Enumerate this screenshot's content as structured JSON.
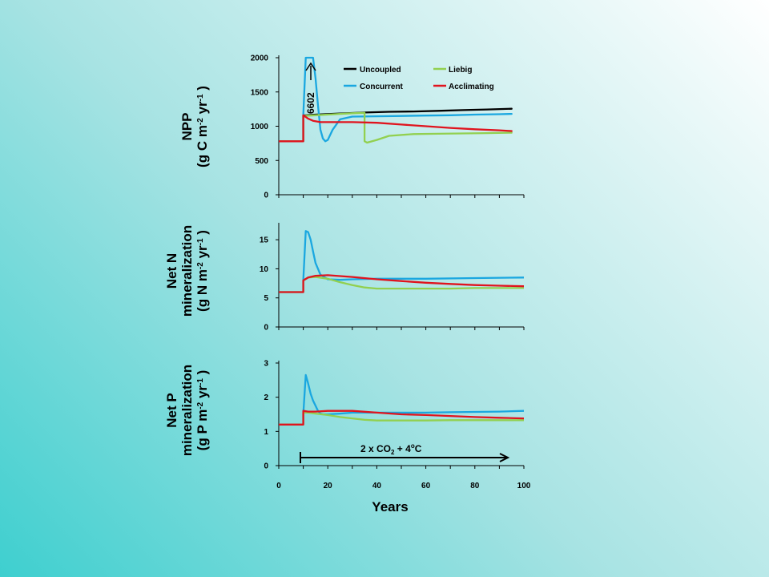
{
  "colors": {
    "Uncoupled": "#000000",
    "Concurrent": "#1aa7e0",
    "Liebig": "#92d050",
    "Acclimating": "#e0141e"
  },
  "xlabel": "Years",
  "legend": {
    "placement": "top-right",
    "entries": [
      "Uncoupled",
      "Liebig",
      "Concurrent",
      "Acclimating"
    ]
  },
  "annotations": {
    "peak_value": "6602",
    "treatment": "2 x CO2 + 4oC"
  },
  "chart_data": [
    {
      "type": "line",
      "ylabel_lines": [
        "NPP",
        "(g C m-2 yr-1 )"
      ],
      "ylim": [
        0,
        2000
      ],
      "yticks": [
        0,
        500,
        1000,
        1500,
        2000
      ],
      "xlim": [
        0,
        100
      ],
      "series": [
        {
          "name": "Uncoupled",
          "x": [
            0,
            10,
            10,
            15,
            25,
            35,
            45,
            55,
            65,
            75,
            85,
            95
          ],
          "values": [
            780,
            780,
            1155,
            1170,
            1185,
            1200,
            1210,
            1215,
            1225,
            1235,
            1245,
            1255
          ]
        },
        {
          "name": "Concurrent",
          "x": [
            0,
            10,
            10,
            11,
            12,
            13,
            14,
            15,
            16,
            17,
            18,
            19,
            20,
            22,
            25,
            30,
            40,
            50,
            60,
            70,
            80,
            90,
            95
          ],
          "values": [
            780,
            780,
            1155,
            2000,
            2000,
            2000,
            2000,
            1700,
            1300,
            950,
            820,
            780,
            800,
            950,
            1100,
            1140,
            1145,
            1150,
            1155,
            1160,
            1170,
            1175,
            1180
          ]
        },
        {
          "name": "Liebig",
          "x": [
            0,
            10,
            10,
            15,
            20,
            25,
            30,
            35,
            35,
            36,
            40,
            45,
            55,
            65,
            75,
            85,
            95
          ],
          "values": [
            780,
            780,
            1150,
            1160,
            1170,
            1180,
            1190,
            1195,
            780,
            760,
            800,
            860,
            885,
            890,
            895,
            900,
            905
          ]
        },
        {
          "name": "Acclimating",
          "x": [
            0,
            10,
            10,
            12,
            14,
            17,
            20,
            30,
            40,
            50,
            60,
            70,
            80,
            90,
            95
          ],
          "values": [
            780,
            780,
            1160,
            1110,
            1080,
            1060,
            1060,
            1060,
            1050,
            1025,
            1000,
            975,
            955,
            940,
            930
          ]
        }
      ]
    },
    {
      "type": "line",
      "ylabel_lines": [
        "Net N",
        "mineralization",
        "(g N m-2 yr-1 )"
      ],
      "ylim": [
        0,
        17.5
      ],
      "yticks": [
        0,
        5,
        10,
        15
      ],
      "xlim": [
        0,
        100
      ],
      "series": [
        {
          "name": "Concurrent",
          "x": [
            0,
            10,
            10,
            11,
            12,
            13,
            14,
            15,
            17,
            20,
            25,
            30,
            40,
            60,
            80,
            100
          ],
          "values": [
            6,
            6,
            8,
            16.5,
            16.3,
            15,
            13,
            11,
            9,
            8.2,
            8.1,
            8.2,
            8.3,
            8.3,
            8.4,
            8.5
          ]
        },
        {
          "name": "Liebig",
          "x": [
            0,
            10,
            10,
            12,
            15,
            20,
            25,
            30,
            35,
            40,
            50,
            60,
            70,
            80,
            90,
            100
          ],
          "values": [
            6,
            6,
            8,
            8.5,
            8.6,
            8.3,
            7.7,
            7.2,
            6.8,
            6.6,
            6.6,
            6.6,
            6.6,
            6.7,
            6.7,
            6.7
          ]
        },
        {
          "name": "Acclimating",
          "x": [
            0,
            10,
            10,
            12,
            15,
            20,
            30,
            40,
            50,
            60,
            70,
            80,
            90,
            100
          ],
          "values": [
            6,
            6,
            8,
            8.5,
            8.8,
            8.9,
            8.6,
            8.2,
            7.9,
            7.6,
            7.4,
            7.2,
            7.1,
            7.0
          ]
        }
      ]
    },
    {
      "type": "line",
      "ylabel_lines": [
        "Net P",
        "mineralization",
        "(g P m-2 yr-1 )"
      ],
      "ylim": [
        0,
        3
      ],
      "yticks": [
        0,
        1,
        2,
        3
      ],
      "xlim": [
        0,
        100
      ],
      "xticks": [
        0,
        20,
        40,
        60,
        80,
        100
      ],
      "series": [
        {
          "name": "Concurrent",
          "x": [
            0,
            10,
            10,
            11,
            12,
            13,
            14,
            15,
            16,
            17,
            18,
            20,
            25,
            30,
            40,
            50,
            60,
            70,
            80,
            90,
            100
          ],
          "values": [
            1.2,
            1.2,
            1.5,
            2.65,
            2.4,
            2.1,
            1.9,
            1.75,
            1.6,
            1.52,
            1.5,
            1.5,
            1.52,
            1.55,
            1.55,
            1.55,
            1.55,
            1.56,
            1.57,
            1.58,
            1.6
          ]
        },
        {
          "name": "Liebig",
          "x": [
            0,
            10,
            10,
            12,
            15,
            20,
            25,
            30,
            35,
            40,
            50,
            60,
            70,
            80,
            90,
            100
          ],
          "values": [
            1.2,
            1.2,
            1.55,
            1.55,
            1.52,
            1.48,
            1.42,
            1.38,
            1.34,
            1.32,
            1.32,
            1.32,
            1.33,
            1.33,
            1.33,
            1.33
          ]
        },
        {
          "name": "Acclimating",
          "x": [
            0,
            10,
            10,
            12,
            15,
            20,
            30,
            40,
            50,
            60,
            70,
            80,
            90,
            100
          ],
          "values": [
            1.2,
            1.2,
            1.6,
            1.58,
            1.58,
            1.6,
            1.6,
            1.55,
            1.5,
            1.48,
            1.45,
            1.42,
            1.4,
            1.38
          ]
        }
      ]
    }
  ]
}
